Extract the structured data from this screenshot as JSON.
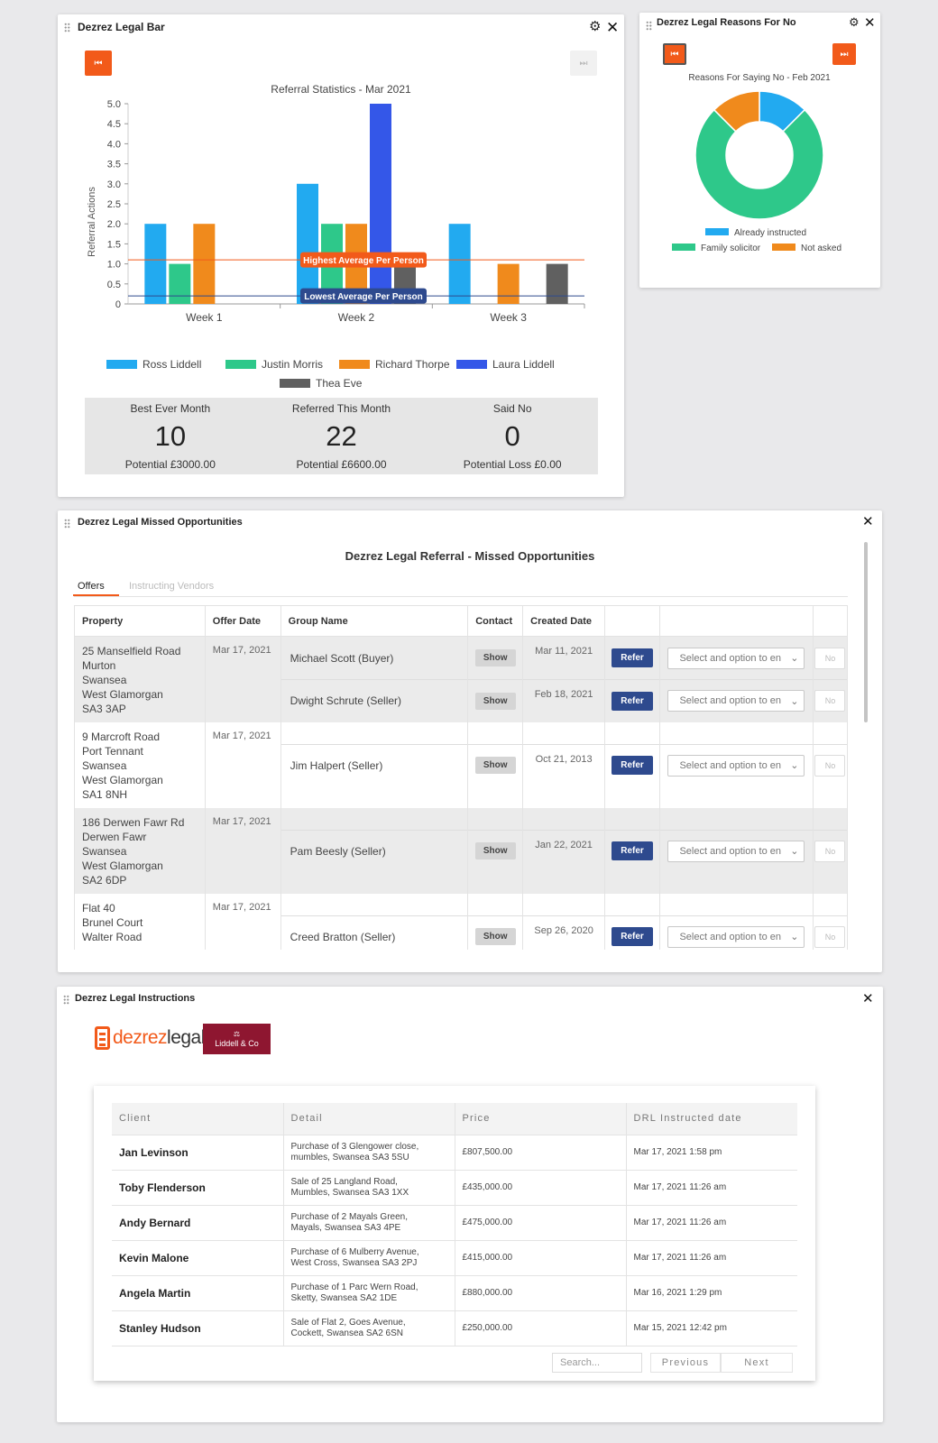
{
  "bar_panel": {
    "title": "Dezrez Legal Bar",
    "stats": [
      {
        "label": "Best Ever Month",
        "value": "10",
        "sub": "Potential £3000.00"
      },
      {
        "label": "Referred This Month",
        "value": "22",
        "sub": "Potential £6600.00"
      },
      {
        "label": "Said No",
        "value": "0",
        "sub": "Potential Loss £0.00"
      }
    ]
  },
  "reasons_panel": {
    "title": "Dezrez Legal Reasons For No"
  },
  "bar_chart": {
    "type": "bar",
    "title": "Referral Statistics - Mar 2021",
    "ylabel": "Referral Actions",
    "ylim": [
      0,
      5
    ],
    "yticks": [
      "0",
      "0.5",
      "1.0",
      "1.5",
      "2.0",
      "2.5",
      "3.0",
      "3.5",
      "4.0",
      "4.5",
      "5.0"
    ],
    "categories": [
      "Week 1",
      "Week 2",
      "Week 3"
    ],
    "series": [
      {
        "name": "Ross Liddell",
        "color": "#22aaf0",
        "values": [
          2,
          3,
          2
        ]
      },
      {
        "name": "Justin Morris",
        "color": "#2ec88a",
        "values": [
          1,
          2,
          0
        ]
      },
      {
        "name": "Richard Thorpe",
        "color": "#f08a1c",
        "values": [
          2,
          2,
          1
        ]
      },
      {
        "name": "Laura Liddell",
        "color": "#3457e8",
        "values": [
          0,
          5,
          0
        ]
      },
      {
        "name": "Thea Eve",
        "color": "#606060",
        "values": [
          0,
          1,
          1
        ]
      }
    ],
    "lines": [
      {
        "label": "Highest Average Per Person",
        "value": 1.1,
        "color": "#f25a1a"
      },
      {
        "label": "Lowest Average Per Person",
        "value": 0.2,
        "color": "#2e4a8e"
      }
    ]
  },
  "donut_chart": {
    "type": "pie",
    "title": "Reasons For Saying No - Feb 2021",
    "slices": [
      {
        "name": "Already instructed",
        "value": 1,
        "color": "#22aaf0"
      },
      {
        "name": "Family solicitor",
        "value": 6,
        "color": "#2ec88a"
      },
      {
        "name": "Not asked",
        "value": 1,
        "color": "#f08a1c"
      }
    ]
  },
  "missed_panel": {
    "title": "Dezrez Legal Missed Opportunities",
    "heading": "Dezrez Legal Referral - Missed Opportunities",
    "tabs": [
      "Offers",
      "Instructing Vendors"
    ],
    "columns": [
      "Property",
      "Offer Date",
      "Group Name",
      "Contact",
      "Created Date"
    ],
    "show_label": "Show",
    "refer_label": "Refer",
    "select_placeholder": "Select and option to en",
    "no_label": "No",
    "rows": [
      {
        "address": [
          "25 Manselfield Road",
          "Murton",
          "Swansea",
          "West Glamorgan",
          "SA3 3AP"
        ],
        "offer_date": "Mar 17, 2021",
        "contacts": [
          {
            "group": "Michael Scott (Buyer)",
            "created": "Mar 11, 2021"
          },
          {
            "group": "Dwight Schrute (Seller)",
            "created": "Feb 18, 2021"
          }
        ]
      },
      {
        "address": [
          "9 Marcroft Road",
          "Port Tennant",
          "Swansea",
          "West Glamorgan",
          "SA1 8NH"
        ],
        "offer_date": "Mar 17, 2021",
        "contacts": [
          {
            "group": "Jim Halpert (Seller)",
            "created": "Oct 21, 2013"
          }
        ]
      },
      {
        "address": [
          "186 Derwen Fawr Rd",
          "Derwen Fawr",
          "Swansea",
          "West Glamorgan",
          "SA2 6DP"
        ],
        "offer_date": "Mar 17, 2021",
        "contacts": [
          {
            "group": "Pam Beesly (Seller)",
            "created": "Jan 22, 2021"
          }
        ]
      },
      {
        "address": [
          "Flat 40",
          "Brunel Court",
          "Walter Road"
        ],
        "offer_date": "Mar 17, 2021",
        "contacts": [
          {
            "group": "Creed Bratton (Seller)",
            "created": "Sep 26, 2020"
          }
        ]
      }
    ]
  },
  "instructions_panel": {
    "title": "Dezrez Legal Instructions",
    "logo_text_a": "dezrez",
    "logo_text_b": "legal",
    "partner_logo": "Liddell & Co",
    "columns": [
      "Client",
      "Detail",
      "Price",
      "DRL Instructed date"
    ],
    "rows": [
      {
        "client": "Jan Levinson",
        "detail": [
          "Purchase of 3 Glengower close,",
          "mumbles, Swansea SA3 5SU"
        ],
        "price": "£807,500.00",
        "date": "Mar 17, 2021 1:58 pm"
      },
      {
        "client": "Toby Flenderson",
        "detail": [
          "Sale of 25 Langland Road,",
          "Mumbles, Swansea SA3 1XX"
        ],
        "price": "£435,000.00",
        "date": "Mar 17, 2021 11:26 am"
      },
      {
        "client": "Andy Bernard",
        "detail": [
          "Purchase of 2 Mayals Green,",
          "Mayals, Swansea SA3 4PE"
        ],
        "price": "£475,000.00",
        "date": "Mar 17, 2021 11:26 am"
      },
      {
        "client": "Kevin Malone",
        "detail": [
          "Purchase of 6 Mulberry Avenue,",
          "West Cross, Swansea SA3 2PJ"
        ],
        "price": "£415,000.00",
        "date": "Mar 17, 2021 11:26 am"
      },
      {
        "client": "Angela Martin",
        "detail": [
          "Purchase of 1 Parc Wern Road,",
          "Sketty, Swansea SA2 1DE"
        ],
        "price": "£880,000.00",
        "date": "Mar 16, 2021 1:29 pm"
      },
      {
        "client": "Stanley Hudson",
        "detail": [
          "Sale of Flat 2, Goes Avenue,",
          "Cockett, Swansea SA2 6SN"
        ],
        "price": "£250,000.00",
        "date": "Mar 15, 2021 12:42 pm"
      }
    ],
    "search_placeholder": "Search...",
    "prev_label": "Previous",
    "next_label": "Next"
  }
}
